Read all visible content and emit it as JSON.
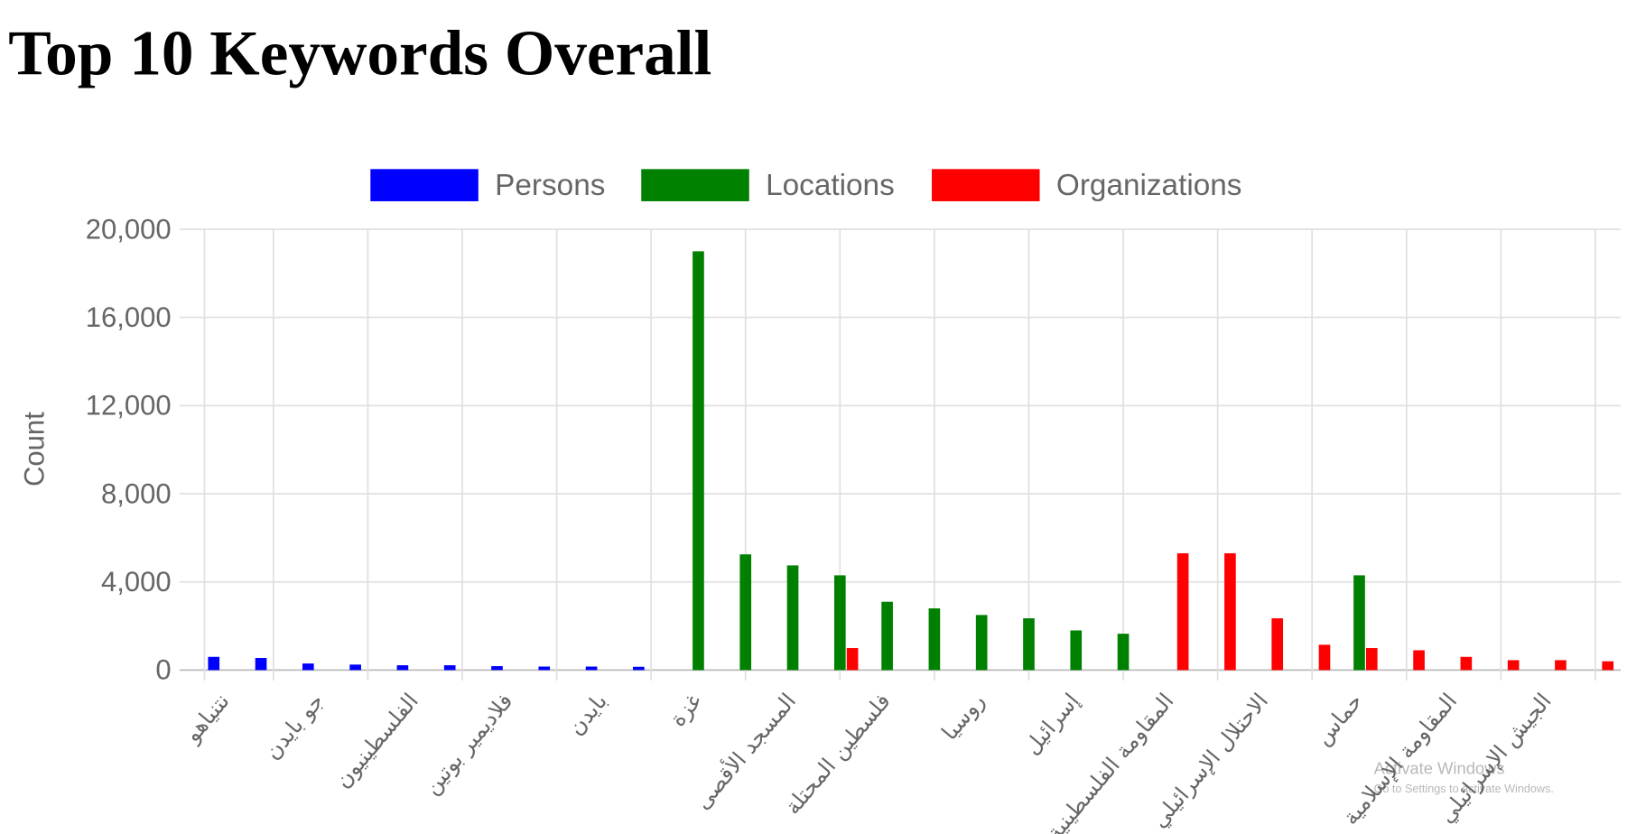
{
  "chart_data": {
    "type": "bar",
    "title": "Top 10 Keywords Overall",
    "y_label": "Count",
    "categories": [
      "نتنياهو",
      null,
      "جو بايدن",
      null,
      "الفلسطينيون",
      null,
      "فلاديمير بوتين",
      null,
      "بايدن",
      null,
      "غزة",
      null,
      "المسجد الأقصى",
      null,
      "فلسطين المحتلة",
      null,
      "روسيا",
      null,
      "إسرائيل",
      null,
      "المقاومة الفلسطينية",
      null,
      "الاحتلال الإسرائيلي",
      null,
      "حماس",
      null,
      "المقاومة الإسلامية",
      null,
      "الجيش الإسرائيلي",
      null
    ],
    "series": [
      {
        "name": "Persons",
        "color": "#0000ff",
        "values": [
          600,
          550,
          300,
          250,
          220,
          220,
          180,
          160,
          160,
          150,
          null,
          null,
          null,
          null,
          null,
          null,
          null,
          null,
          null,
          null,
          null,
          null,
          null,
          null,
          null,
          null,
          null,
          null,
          null,
          null
        ]
      },
      {
        "name": "Locations",
        "color": "#008000",
        "values": [
          null,
          null,
          null,
          null,
          null,
          null,
          null,
          null,
          null,
          null,
          19000,
          5250,
          4750,
          4300,
          3100,
          2800,
          2500,
          2350,
          1800,
          1650,
          null,
          null,
          null,
          null,
          4300,
          null,
          null,
          null,
          null,
          null
        ]
      },
      {
        "name": "Organizations",
        "color": "#ff0000",
        "values": [
          null,
          null,
          null,
          null,
          null,
          null,
          null,
          null,
          null,
          null,
          null,
          null,
          null,
          1000,
          null,
          null,
          null,
          null,
          null,
          null,
          5300,
          5300,
          2350,
          1150,
          1000,
          900,
          600,
          450,
          450,
          400
        ]
      }
    ],
    "ylim": [
      0,
      20000
    ],
    "yticks": [
      0,
      {
        "value": 4000,
        "label": "4,000"
      },
      {
        "value": 8000,
        "label": "8,000"
      },
      {
        "value": 12000,
        "label": "12,000"
      },
      {
        "value": 16000,
        "label": "16,000"
      },
      {
        "value": 20000,
        "label": "20,000"
      }
    ],
    "grid": true,
    "legend": "top",
    "watermark": {
      "title": "Activate Windows",
      "subtitle": "Go to Settings to activate Windows."
    }
  }
}
